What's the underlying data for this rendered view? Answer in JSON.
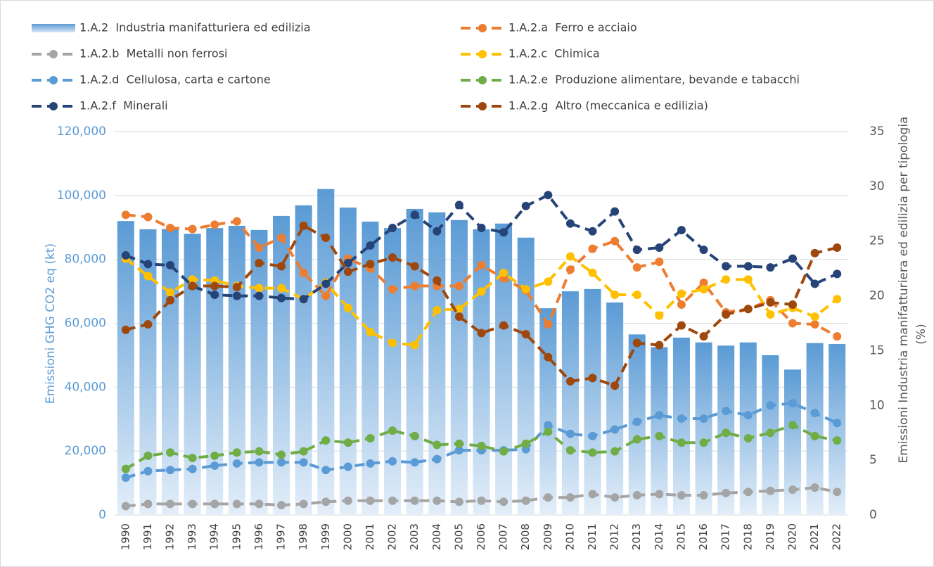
{
  "chart_data": {
    "type": "bar",
    "y_label": "Emissioni GHG CO2 eq (kt)",
    "y2_label": [
      "Emissioni Industria manifatturiera ed edilizia per tipologia",
      "(%)"
    ],
    "categories": [
      "1990",
      "1991",
      "1992",
      "1993",
      "1994",
      "1995",
      "1996",
      "1997",
      "1998",
      "1999",
      "2000",
      "2001",
      "2002",
      "2003",
      "2004",
      "2005",
      "2006",
      "2007",
      "2008",
      "2009",
      "2010",
      "2011",
      "2012",
      "2013",
      "2014",
      "2015",
      "2016",
      "2017",
      "2018",
      "2019",
      "2020",
      "2021",
      "2022"
    ],
    "ylim": [
      0,
      120000
    ],
    "yticks": [
      0,
      {
        "value": 20000,
        "label": "20,000"
      },
      {
        "value": 40000,
        "label": "40,000"
      },
      {
        "value": 60000,
        "label": "60,000"
      },
      {
        "value": 80000,
        "label": "80,000"
      },
      {
        "value": 100000,
        "label": "100,000"
      },
      {
        "value": 120000,
        "label": "120,000"
      }
    ],
    "y2lim": [
      0,
      35
    ],
    "y2ticks": [
      0,
      5,
      10,
      15,
      20,
      25,
      30,
      35
    ],
    "grid": true,
    "series": [
      {
        "name": "1.A.2  Industria manifatturiera ed edilizia",
        "type": "bar",
        "color": "#5b9bd5",
        "values": [
          92000,
          89400,
          89500,
          88000,
          89800,
          90500,
          89200,
          93600,
          96900,
          102000,
          96200,
          91800,
          89800,
          95800,
          94700,
          92300,
          89400,
          91200,
          86800,
          64700,
          70000,
          70700,
          66500,
          56500,
          52500,
          55500,
          54000,
          53000,
          54000,
          50000,
          45500,
          53800,
          53500
        ]
      },
      {
        "name": "1.A.2.a  Ferro e acciaio",
        "type": "line",
        "axis": "y2",
        "color": "#ed7d31",
        "values": [
          27.4,
          27.2,
          26.2,
          26.1,
          26.5,
          26.8,
          24.4,
          25.3,
          22.1,
          20.0,
          23.4,
          22.5,
          20.6,
          20.9,
          20.9,
          20.9,
          22.8,
          21.6,
          20.5,
          17.4,
          22.4,
          24.3,
          25.0,
          22.6,
          23.1,
          19.2,
          21.2,
          18.5,
          18.8,
          19.6,
          17.5,
          17.4,
          16.3
        ]
      },
      {
        "name": "1.A.2.b  Metalli non ferrosi",
        "type": "line",
        "axis": "y2",
        "color": "#a5a5a5",
        "values": [
          0.8,
          1.0,
          1.0,
          1.0,
          1.0,
          1.0,
          1.0,
          0.9,
          1.0,
          1.2,
          1.3,
          1.3,
          1.3,
          1.3,
          1.3,
          1.2,
          1.3,
          1.2,
          1.3,
          1.6,
          1.6,
          1.9,
          1.6,
          1.8,
          1.9,
          1.8,
          1.8,
          2.0,
          2.1,
          2.2,
          2.3,
          2.5,
          2.1
        ]
      },
      {
        "name": "1.A.2.c  Chimica",
        "type": "line",
        "axis": "y2",
        "color": "#ffc000",
        "values": [
          23.4,
          21.8,
          20.3,
          21.5,
          21.4,
          20.9,
          20.7,
          20.7,
          19.7,
          21.2,
          18.9,
          16.7,
          15.7,
          15.5,
          18.7,
          18.8,
          20.4,
          22.1,
          20.6,
          21.3,
          23.6,
          22.1,
          20.1,
          20.1,
          18.2,
          20.2,
          20.6,
          21.5,
          21.5,
          18.3,
          18.9,
          18.1,
          19.7
        ]
      },
      {
        "name": "1.A.2.d  Cellulosa, carta e cartone",
        "type": "line",
        "axis": "y2",
        "color": "#5b9bd5",
        "values": [
          3.4,
          4.0,
          4.1,
          4.2,
          4.5,
          4.7,
          4.8,
          4.8,
          4.8,
          4.1,
          4.4,
          4.7,
          4.9,
          4.8,
          5.1,
          5.9,
          5.9,
          5.9,
          6.0,
          8.2,
          7.4,
          7.2,
          7.8,
          8.5,
          9.1,
          8.8,
          8.8,
          9.5,
          9.1,
          10.0,
          10.2,
          9.3,
          8.4
        ]
      },
      {
        "name": "1.A.2.e  Produzione alimentare, bevande e tabacchi",
        "type": "line",
        "axis": "y2",
        "color": "#70ad47",
        "values": [
          4.2,
          5.4,
          5.7,
          5.2,
          5.4,
          5.7,
          5.8,
          5.5,
          5.8,
          6.8,
          6.6,
          7.0,
          7.7,
          7.2,
          6.4,
          6.5,
          6.3,
          5.8,
          6.5,
          7.6,
          5.9,
          5.7,
          5.8,
          6.9,
          7.2,
          6.6,
          6.6,
          7.5,
          7.0,
          7.5,
          8.2,
          7.2,
          6.8
        ]
      },
      {
        "name": "1.A.2.f  Minerali",
        "type": "line",
        "axis": "y2",
        "color": "#264478",
        "values": [
          23.7,
          22.9,
          22.8,
          20.9,
          20.1,
          20.0,
          20.0,
          19.8,
          19.7,
          21.1,
          23.0,
          24.6,
          26.2,
          27.4,
          25.9,
          28.3,
          26.2,
          25.8,
          28.2,
          29.2,
          26.6,
          25.9,
          27.7,
          24.2,
          24.4,
          26.0,
          24.2,
          22.7,
          22.7,
          22.6,
          23.4,
          21.1,
          22.0
        ]
      },
      {
        "name": "1.A.2.g  Altro (meccanica e edilizia)",
        "type": "line",
        "axis": "y2",
        "color": "#9e480e",
        "values": [
          16.9,
          17.4,
          19.6,
          20.9,
          20.9,
          20.8,
          23.0,
          22.7,
          26.4,
          25.3,
          22.2,
          22.9,
          23.5,
          22.7,
          21.4,
          18.1,
          16.6,
          17.3,
          16.5,
          14.4,
          12.2,
          12.5,
          11.8,
          15.7,
          15.5,
          17.3,
          16.3,
          18.3,
          18.8,
          19.4,
          19.2,
          23.9,
          24.4
        ]
      }
    ]
  }
}
